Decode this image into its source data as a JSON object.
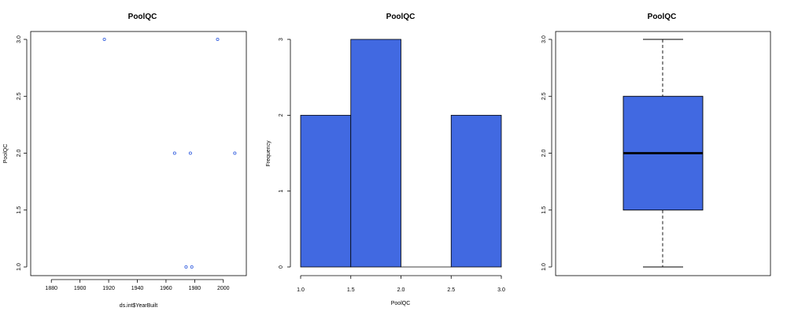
{
  "colors": {
    "fill": "#4169E1",
    "point": "#4169E1",
    "stroke": "#000000"
  },
  "chart_data": [
    {
      "type": "scatter",
      "title": "PoolQC",
      "xlabel": "ds.int$YearBuilt",
      "ylabel": "PoolQC",
      "xlim": [
        1870,
        2010
      ],
      "ylim": [
        1.0,
        3.0
      ],
      "xticks": [
        1880,
        1900,
        1920,
        1940,
        1960,
        1980,
        2000
      ],
      "xtick_labels": [
        "1880",
        "1900",
        "1920",
        "1940",
        "1960",
        "1980",
        "2000"
      ],
      "yticks": [
        1.0,
        1.5,
        2.0,
        2.5,
        3.0
      ],
      "ytick_labels": [
        "1.0",
        "1.5",
        "2.0",
        "2.5",
        "3.0"
      ],
      "points": [
        {
          "x": 1917,
          "y": 3.0
        },
        {
          "x": 1996,
          "y": 3.0
        },
        {
          "x": 1966,
          "y": 2.0
        },
        {
          "x": 1977,
          "y": 2.0
        },
        {
          "x": 2008,
          "y": 2.0
        },
        {
          "x": 1974,
          "y": 1.0
        },
        {
          "x": 1978,
          "y": 1.0
        }
      ]
    },
    {
      "type": "bar",
      "title": "PoolQC",
      "xlabel": "PoolQC",
      "ylabel": "Frequency",
      "xlim": [
        1.0,
        3.0
      ],
      "ylim": [
        0,
        3
      ],
      "xticks": [
        1.0,
        1.5,
        2.0,
        2.5,
        3.0
      ],
      "xtick_labels": [
        "1.0",
        "1.5",
        "2.0",
        "2.5",
        "3.0"
      ],
      "yticks": [
        0,
        1,
        2,
        3
      ],
      "ytick_labels": [
        "0",
        "1",
        "2",
        "3"
      ],
      "bins": [
        {
          "from": 1.0,
          "to": 1.5,
          "count": 2
        },
        {
          "from": 1.5,
          "to": 2.0,
          "count": 3
        },
        {
          "from": 2.0,
          "to": 2.5,
          "count": 0
        },
        {
          "from": 2.5,
          "to": 3.0,
          "count": 2
        }
      ]
    },
    {
      "type": "box",
      "title": "PoolQC",
      "ylim": [
        1.0,
        3.0
      ],
      "yticks": [
        1.0,
        1.5,
        2.0,
        2.5,
        3.0
      ],
      "ytick_labels": [
        "1.0",
        "1.5",
        "2.0",
        "2.5",
        "3.0"
      ],
      "min": 1.0,
      "q1": 1.5,
      "median": 2.0,
      "q3": 2.5,
      "max": 3.0
    }
  ]
}
